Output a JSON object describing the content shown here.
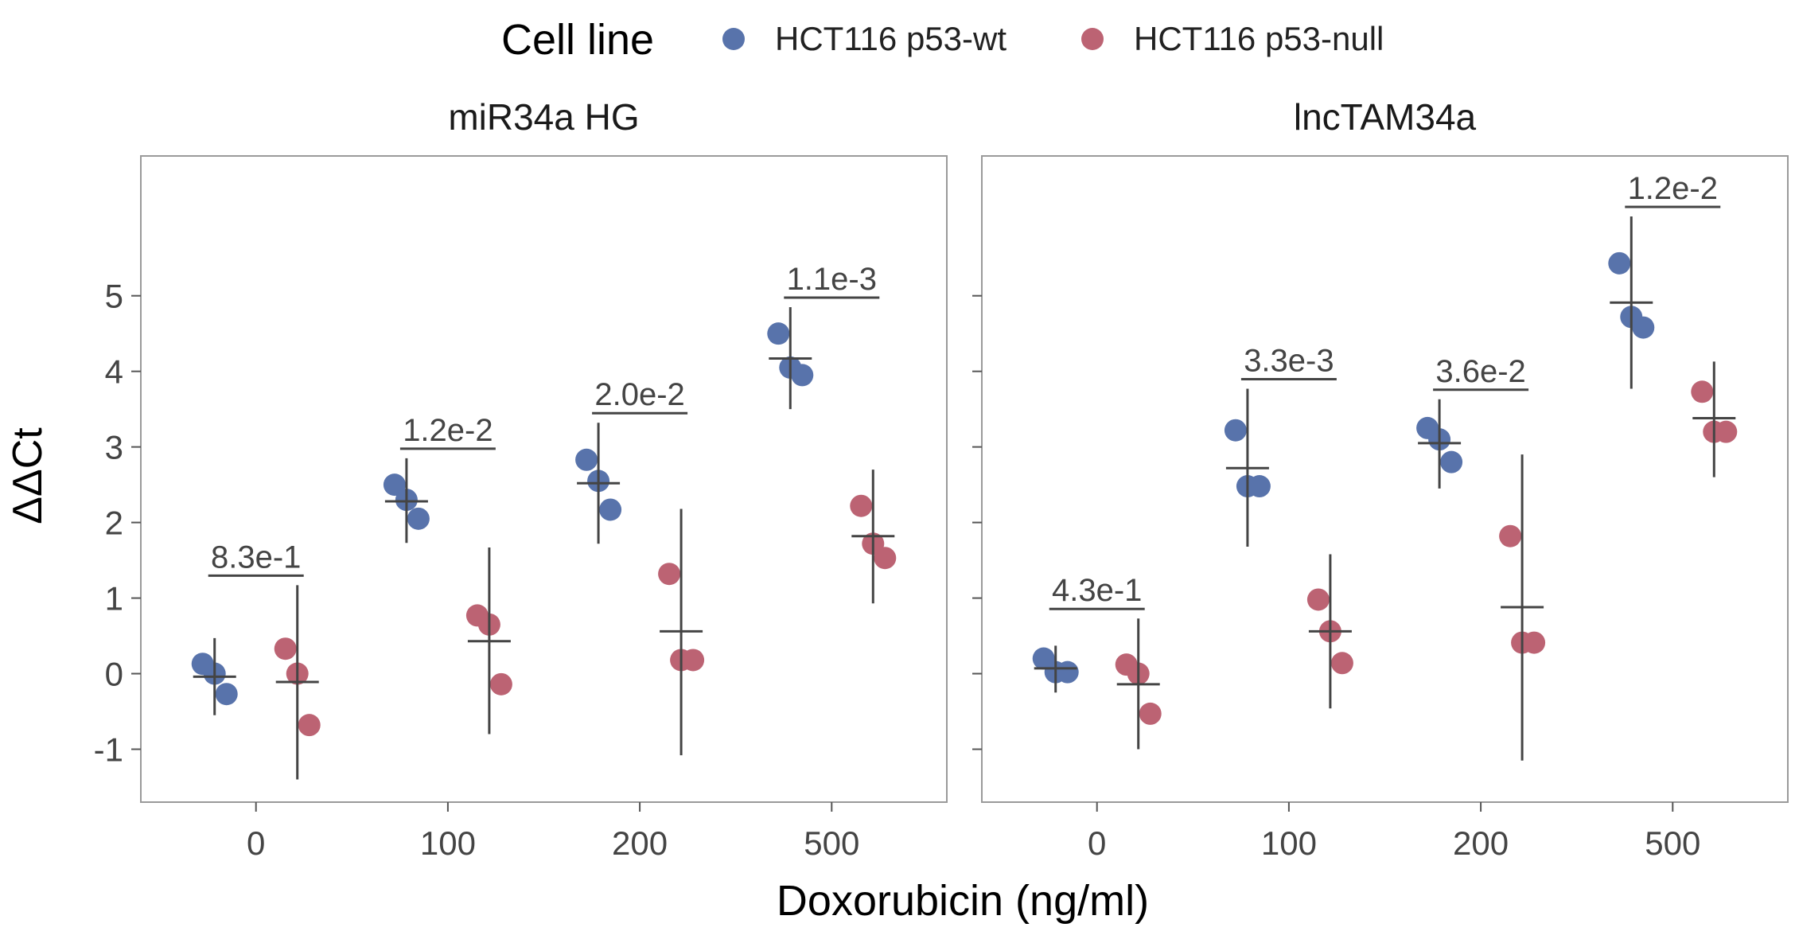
{
  "legend": {
    "title": "Cell line",
    "items": [
      {
        "label": "HCT116 p53-wt",
        "color": "#5873AB"
      },
      {
        "label": "HCT116 p53-null",
        "color": "#BC6373"
      }
    ]
  },
  "x_axis_label": "Doxorubicin (ng/ml)",
  "y_axis_label": "ΔΔCt",
  "chart_data": {
    "type": "scatter",
    "xlabel": "Doxorubicin (ng/ml)",
    "ylabel": "ΔΔCt",
    "categories": [
      "0",
      "100",
      "200",
      "500"
    ],
    "ylim": [
      -1.7,
      6.85
    ],
    "yticks": [
      -1,
      0,
      1,
      2,
      3,
      4,
      5
    ],
    "grid": false,
    "legend_position": "top",
    "series_colors": {
      "HCT116 p53-wt": "#5873AB",
      "HCT116 p53-null": "#BC6373"
    },
    "panels": [
      {
        "title": "miR34a HG",
        "groups": [
          {
            "dose": "0",
            "p_value": "8.3e-1",
            "wt": {
              "points": [
                0.13,
                0.0,
                -0.27
              ],
              "mean": -0.04,
              "ci": [
                -0.55,
                0.47
              ]
            },
            "null": {
              "points": [
                0.33,
                0.0,
                -0.68
              ],
              "mean": -0.11,
              "ci": [
                -1.4,
                1.17
              ]
            }
          },
          {
            "dose": "100",
            "p_value": "1.2e-2",
            "wt": {
              "points": [
                2.5,
                2.3,
                2.05
              ],
              "mean": 2.28,
              "ci": [
                1.73,
                2.85
              ]
            },
            "null": {
              "points": [
                0.77,
                0.65,
                -0.14
              ],
              "mean": 0.43,
              "ci": [
                -0.8,
                1.67
              ]
            }
          },
          {
            "dose": "200",
            "p_value": "2.0e-2",
            "wt": {
              "points": [
                2.83,
                2.55,
                2.17
              ],
              "mean": 2.52,
              "ci": [
                1.72,
                3.32
              ]
            },
            "null": {
              "points": [
                1.32,
                0.18,
                0.18
              ],
              "mean": 0.56,
              "ci": [
                -1.08,
                2.18
              ]
            }
          },
          {
            "dose": "500",
            "p_value": "1.1e-3",
            "wt": {
              "points": [
                4.5,
                4.05,
                3.95
              ],
              "mean": 4.17,
              "ci": [
                3.5,
                4.85
              ]
            },
            "null": {
              "points": [
                2.22,
                1.72,
                1.53
              ],
              "mean": 1.82,
              "ci": [
                0.93,
                2.7
              ]
            }
          }
        ]
      },
      {
        "title": "lncTAM34a",
        "groups": [
          {
            "dose": "0",
            "p_value": "4.3e-1",
            "wt": {
              "points": [
                0.2,
                0.02,
                0.02
              ],
              "mean": 0.07,
              "ci": [
                -0.25,
                0.37
              ]
            },
            "null": {
              "points": [
                0.12,
                0.0,
                -0.53
              ],
              "mean": -0.14,
              "ci": [
                -1.0,
                0.73
              ]
            }
          },
          {
            "dose": "100",
            "p_value": "3.3e-3",
            "wt": {
              "points": [
                3.22,
                2.48,
                2.48
              ],
              "mean": 2.72,
              "ci": [
                1.68,
                3.77
              ]
            },
            "null": {
              "points": [
                0.98,
                0.56,
                0.14
              ],
              "mean": 0.56,
              "ci": [
                -0.46,
                1.58
              ]
            }
          },
          {
            "dose": "200",
            "p_value": "3.6e-2",
            "wt": {
              "points": [
                3.25,
                3.1,
                2.8
              ],
              "mean": 3.05,
              "ci": [
                2.45,
                3.63
              ]
            },
            "null": {
              "points": [
                1.82,
                0.41,
                0.41
              ],
              "mean": 0.88,
              "ci": [
                -1.15,
                2.9
              ]
            }
          },
          {
            "dose": "500",
            "p_value": "1.2e-2",
            "wt": {
              "points": [
                5.43,
                4.72,
                4.58
              ],
              "mean": 4.91,
              "ci": [
                3.77,
                6.05
              ]
            },
            "null": {
              "points": [
                3.73,
                3.2,
                3.2
              ],
              "mean": 3.38,
              "ci": [
                2.6,
                4.13
              ]
            }
          }
        ]
      }
    ]
  }
}
